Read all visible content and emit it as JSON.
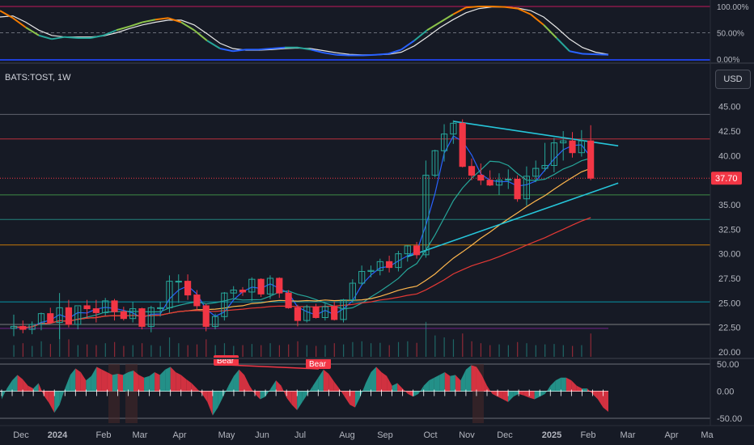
{
  "symbol_label": "BATS:TOST, 1W",
  "currency_button": "USD",
  "colors": {
    "up": "#26a69a",
    "down": "#f23645",
    "bg": "#161a25",
    "grid": "#2a2e39",
    "text": "#b2b5be"
  },
  "chart_data": {
    "type": "candlestick",
    "price_axis": {
      "ticks": [
        "45.00",
        "42.50",
        "40.00",
        "37.50",
        "35.00",
        "32.50",
        "30.00",
        "27.50",
        "25.00",
        "22.50",
        "20.00"
      ],
      "range": [
        19.5,
        45.8
      ]
    },
    "last_price": "37.70",
    "time_axis": [
      "Dec",
      "2024",
      "Feb",
      "Mar",
      "Apr",
      "May",
      "Jun",
      "Jul",
      "Aug",
      "Sep",
      "Oct",
      "Nov",
      "Dec",
      "2025",
      "Feb",
      "Mar",
      "Apr",
      "Ma"
    ],
    "horizontal_levels": [
      44.2,
      41.7,
      36.0,
      33.5,
      30.9,
      25.1,
      22.8
    ],
    "candles": [
      [
        22.4,
        23.8,
        21.6,
        22.6
      ],
      [
        22.6,
        23.2,
        21.9,
        22.3
      ],
      [
        22.3,
        23.1,
        21.8,
        22.8
      ],
      [
        22.8,
        24.0,
        22.2,
        23.9
      ],
      [
        23.9,
        24.5,
        22.9,
        23.0
      ],
      [
        23.0,
        26.0,
        21.3,
        24.5
      ],
      [
        24.5,
        25.3,
        22.5,
        22.8
      ],
      [
        22.8,
        24.6,
        22.3,
        24.7
      ],
      [
        24.7,
        25.3,
        23.5,
        24.4
      ],
      [
        24.4,
        25.3,
        23.0,
        24.0
      ],
      [
        24.0,
        25.5,
        23.7,
        25.2
      ],
      [
        25.2,
        25.4,
        23.2,
        24.1
      ],
      [
        24.1,
        24.6,
        23.2,
        23.4
      ],
      [
        23.4,
        25.1,
        23.0,
        24.4
      ],
      [
        24.4,
        24.5,
        22.3,
        22.6
      ],
      [
        22.6,
        24.7,
        22.0,
        24.5
      ],
      [
        24.5,
        25.1,
        23.6,
        24.5
      ],
      [
        24.5,
        27.8,
        24.0,
        27.2
      ],
      [
        27.2,
        27.9,
        25.0,
        27.2
      ],
      [
        27.2,
        27.9,
        25.3,
        25.8
      ],
      [
        25.8,
        26.3,
        24.2,
        24.7
      ],
      [
        24.7,
        24.9,
        22.1,
        22.6
      ],
      [
        22.6,
        23.9,
        22.3,
        23.6
      ],
      [
        23.6,
        26.1,
        23.2,
        26.0
      ],
      [
        26.0,
        26.7,
        25.5,
        26.3
      ],
      [
        26.3,
        26.6,
        25.7,
        26.1
      ],
      [
        26.1,
        27.6,
        25.2,
        27.4
      ],
      [
        27.4,
        27.5,
        25.6,
        25.9
      ],
      [
        25.9,
        27.8,
        25.4,
        27.5
      ],
      [
        27.5,
        27.6,
        25.5,
        26.0
      ],
      [
        26.0,
        26.3,
        24.4,
        24.5
      ],
      [
        24.5,
        24.8,
        22.6,
        23.2
      ],
      [
        23.2,
        24.8,
        23.0,
        24.6
      ],
      [
        24.6,
        24.9,
        23.4,
        23.5
      ],
      [
        23.5,
        24.9,
        23.2,
        24.6
      ],
      [
        24.6,
        25.1,
        23.2,
        23.3
      ],
      [
        23.3,
        25.4,
        23.0,
        25.3
      ],
      [
        25.3,
        27.4,
        25.0,
        27.0
      ],
      [
        27.0,
        28.8,
        26.8,
        28.2
      ],
      [
        28.2,
        28.8,
        27.6,
        28.3
      ],
      [
        28.3,
        29.5,
        27.8,
        29.2
      ],
      [
        29.2,
        29.8,
        28.1,
        28.6
      ],
      [
        28.6,
        30.3,
        28.2,
        30.0
      ],
      [
        30.0,
        30.9,
        29.2,
        30.8
      ],
      [
        30.8,
        31.2,
        29.5,
        29.9
      ],
      [
        29.9,
        39.5,
        29.6,
        38.0
      ],
      [
        38.0,
        40.6,
        37.8,
        40.5
      ],
      [
        40.5,
        43.2,
        39.4,
        42.2
      ],
      [
        42.2,
        43.6,
        41.2,
        43.3
      ],
      [
        43.3,
        43.7,
        38.8,
        38.9
      ],
      [
        38.9,
        39.7,
        37.5,
        38.0
      ],
      [
        38.0,
        39.2,
        37.0,
        37.5
      ],
      [
        37.5,
        38.5,
        36.9,
        37.0
      ],
      [
        37.0,
        38.2,
        36.0,
        37.5
      ],
      [
        37.5,
        38.6,
        36.6,
        37.6
      ],
      [
        37.6,
        38.0,
        35.3,
        35.6
      ],
      [
        35.6,
        38.9,
        34.9,
        37.9
      ],
      [
        37.9,
        39.5,
        37.3,
        38.7
      ],
      [
        38.7,
        41.3,
        38.4,
        39.0
      ],
      [
        39.0,
        41.8,
        38.3,
        41.3
      ],
      [
        41.3,
        42.5,
        39.5,
        41.5
      ],
      [
        41.5,
        42.4,
        39.8,
        40.3
      ],
      [
        40.3,
        42.6,
        39.9,
        41.5
      ],
      [
        41.5,
        43.1,
        37.5,
        37.7
      ]
    ],
    "volume_levels": [
      0.3,
      0.35,
      0.28,
      0.4,
      0.33,
      0.8,
      0.45,
      0.3,
      0.32,
      0.3,
      0.35,
      0.38,
      0.28,
      0.3,
      0.35,
      0.3,
      0.28,
      0.5,
      0.35,
      0.3,
      0.32,
      0.45,
      0.3,
      0.35,
      0.28,
      0.3,
      0.33,
      0.3,
      0.35,
      0.3,
      0.32,
      0.4,
      0.3,
      0.28,
      0.3,
      0.35,
      0.32,
      0.38,
      0.4,
      0.35,
      0.36,
      0.3,
      0.38,
      0.4,
      0.36,
      0.9,
      0.55,
      0.5,
      0.45,
      0.6,
      0.4,
      0.35,
      0.3,
      0.32,
      0.3,
      0.38,
      0.35,
      0.3,
      0.32,
      0.33,
      0.3,
      0.28,
      0.3,
      0.6
    ],
    "stoch_axis": [
      "100.00%",
      "50.00%",
      "0.00%"
    ],
    "stoch_k": [
      92,
      78,
      60,
      45,
      38,
      42,
      40,
      40,
      45,
      55,
      62,
      70,
      75,
      78,
      70,
      55,
      35,
      20,
      15,
      18,
      18,
      20,
      22,
      22,
      18,
      12,
      8,
      7,
      7,
      8,
      10,
      18,
      35,
      55,
      70,
      85,
      98,
      100,
      100,
      99,
      96,
      85,
      65,
      40,
      15,
      10,
      9,
      8
    ],
    "stoch_d": [
      80,
      82,
      70,
      55,
      45,
      42,
      42,
      42,
      44,
      50,
      58,
      65,
      70,
      74,
      74,
      65,
      48,
      30,
      20,
      17,
      17,
      18,
      20,
      21,
      20,
      16,
      12,
      9,
      8,
      8,
      9,
      13,
      25,
      42,
      60,
      75,
      88,
      96,
      99,
      99,
      97,
      92,
      80,
      60,
      38,
      22,
      13,
      9
    ],
    "osc_axis": [
      "50.00",
      "0.00",
      "-50.00"
    ],
    "osc_labels": [
      "Bear",
      "Bear"
    ],
    "oscillator": [
      -15,
      5,
      20,
      30,
      22,
      10,
      5,
      15,
      -8,
      -22,
      -40,
      -25,
      5,
      30,
      42,
      35,
      20,
      28,
      45,
      40,
      35,
      30,
      32,
      30,
      35,
      38,
      30,
      25,
      28,
      35,
      30,
      40,
      45,
      35,
      30,
      22,
      15,
      5,
      -5,
      -20,
      -45,
      -30,
      -10,
      10,
      28,
      40,
      30,
      10,
      -5,
      -15,
      -10,
      5,
      20,
      10,
      -12,
      -25,
      -35,
      -20,
      -5,
      10,
      25,
      40,
      32,
      18,
      5,
      -10,
      -25,
      -30,
      -10,
      15,
      35,
      45,
      35,
      28,
      10,
      15,
      5,
      -5,
      -10,
      -5,
      10,
      20,
      25,
      30,
      35,
      28,
      30,
      20,
      40,
      48,
      45,
      30,
      10,
      -5,
      -10,
      -15,
      -20,
      -10,
      -5,
      -8,
      -12,
      -15,
      -10,
      -5,
      10,
      20,
      25,
      25,
      20,
      10,
      5,
      5,
      -5,
      -15,
      -30,
      -38
    ]
  }
}
